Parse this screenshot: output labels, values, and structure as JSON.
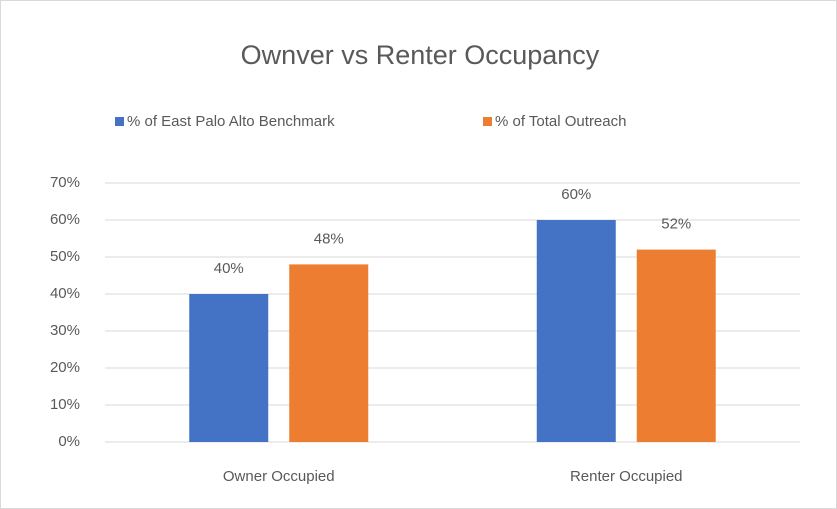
{
  "chart_data": {
    "type": "bar",
    "title": "Ownver vs Renter Occupancy",
    "categories": [
      "Owner Occupied",
      "Renter Occupied"
    ],
    "series": [
      {
        "name": "% of East Palo Alto Benchmark",
        "color": "#4472c4",
        "values": [
          40,
          60
        ],
        "value_labels": [
          "40%",
          "60%"
        ]
      },
      {
        "name": "% of Total Outreach",
        "color": "#ed7d31",
        "values": [
          48,
          52
        ],
        "value_labels": [
          "48%",
          "52%"
        ]
      }
    ],
    "ylim": [
      0,
      70
    ],
    "yticks": [
      {
        "value": 0,
        "label": "0%"
      },
      {
        "value": 10,
        "label": "10%"
      },
      {
        "value": 20,
        "label": "20%"
      },
      {
        "value": 30,
        "label": "30%"
      },
      {
        "value": 40,
        "label": "40%"
      },
      {
        "value": 50,
        "label": "50%"
      },
      {
        "value": 60,
        "label": "60%"
      },
      {
        "value": 70,
        "label": "70%"
      }
    ],
    "grid": true,
    "legend": "top"
  }
}
